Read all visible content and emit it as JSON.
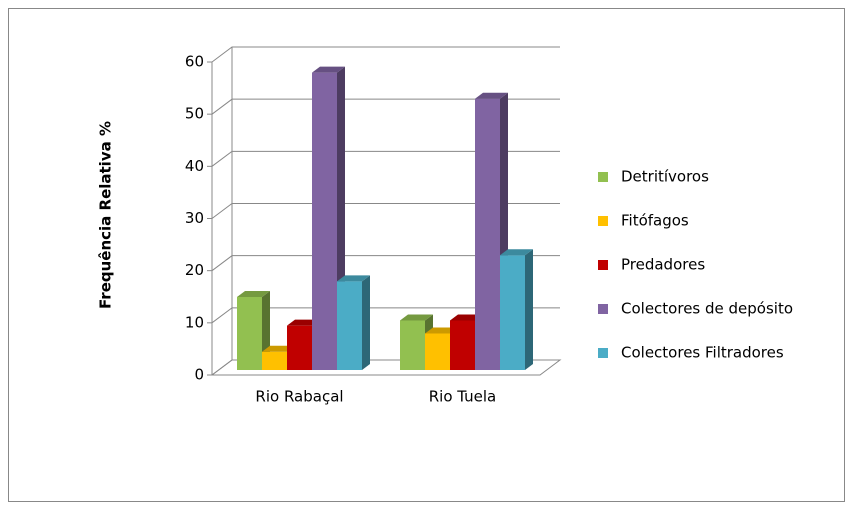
{
  "chart_data": {
    "type": "bar3d",
    "y_label": "Frequência Relativa %",
    "categories": [
      "Rio Rabaçal",
      "Rio Tuela"
    ],
    "series": [
      {
        "name": "Detritívoros",
        "color": "#92c050",
        "values": [
          14,
          9.5
        ]
      },
      {
        "name": "Fitófagos",
        "color": "#ffc000",
        "values": [
          3.5,
          7
        ]
      },
      {
        "name": "Predadores",
        "color": "#c00000",
        "values": [
          8.5,
          9.5
        ]
      },
      {
        "name": "Colectores de depósito",
        "color": "#8064a2",
        "values": [
          57,
          52
        ]
      },
      {
        "name": "Colectores Filtradores",
        "color": "#4bacc6",
        "values": [
          17,
          22
        ]
      }
    ],
    "ylim": [
      0,
      60
    ],
    "yticks": [
      0,
      10,
      20,
      30,
      40,
      50,
      60
    ],
    "grid": true,
    "legend": "right"
  }
}
